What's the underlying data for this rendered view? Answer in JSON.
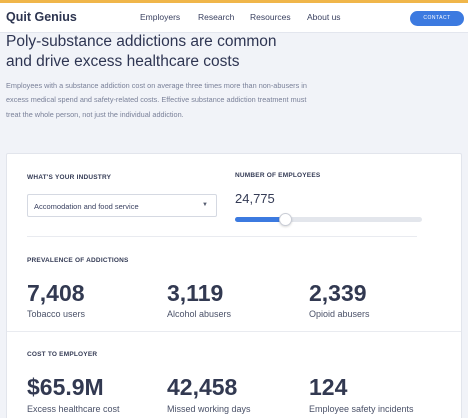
{
  "nav": {
    "logo": "Quit Genius",
    "links": [
      "Employers",
      "Research",
      "Resources",
      "About us"
    ],
    "contact": "CONTACT"
  },
  "hero": {
    "title": "Poly-substance addictions are common and drive excess healthcare costs",
    "text": "Employees with a substance addiction cost on average three times more than non-abusers in excess medical spend and safety-related costs. Effective substance addiction treatment must treat the whole person, not just the individual addiction."
  },
  "calculator": {
    "industry_label": "WHAT'S YOUR INDUSTRY",
    "industry_value": "Accomodation and food service",
    "employees_label": "NUMBER OF EMPLOYEES",
    "employees_value": "24,775",
    "slider_fraction": 0.27,
    "accent_color": "#3c7ae0"
  },
  "prevalence": {
    "label": "PREVALENCE OF ADDICTIONS",
    "items": [
      {
        "value": "7,408",
        "caption": "Tobacco users"
      },
      {
        "value": "3,119",
        "caption": "Alcohol abusers"
      },
      {
        "value": "2,339",
        "caption": "Opioid abusers"
      }
    ]
  },
  "cost": {
    "label": "COST TO EMPLOYER",
    "items": [
      {
        "value": "$65.9M",
        "caption": "Excess healthcare cost"
      },
      {
        "value": "42,458",
        "caption": "Missed working days"
      },
      {
        "value": "124",
        "caption": "Employee safety incidents"
      }
    ]
  }
}
